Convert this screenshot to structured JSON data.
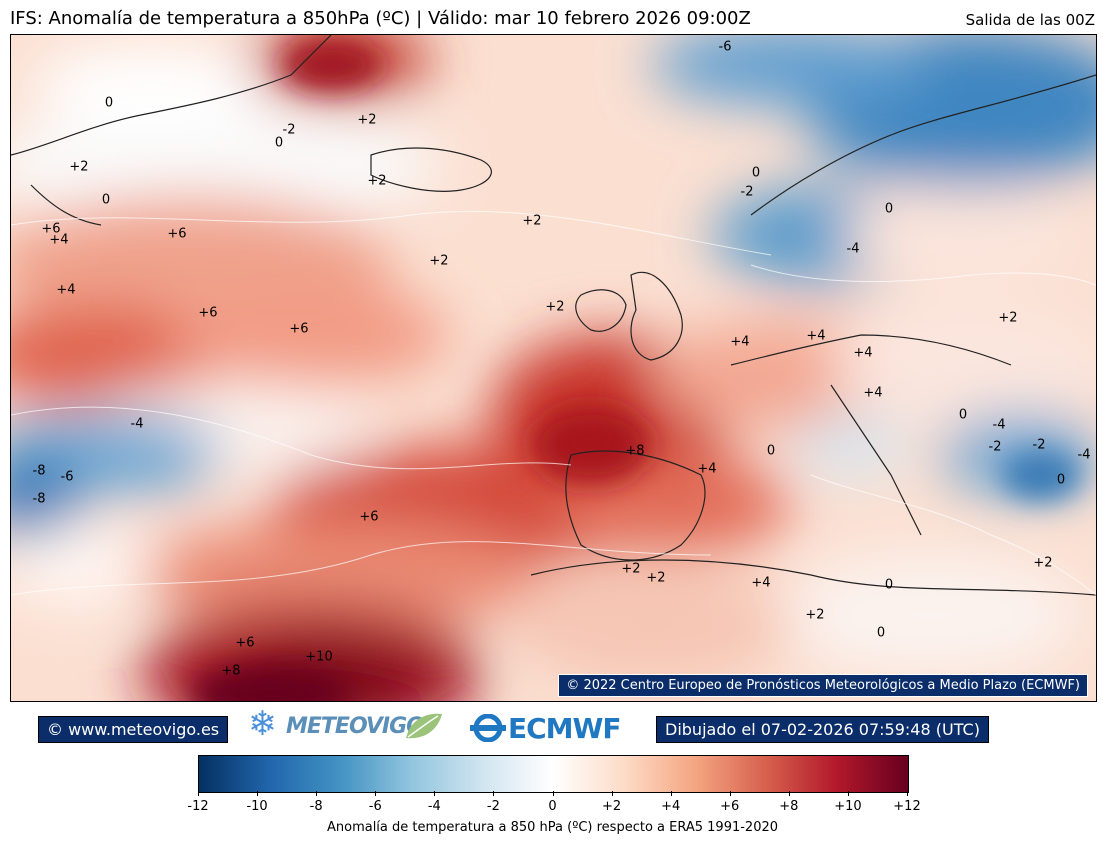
{
  "header": {
    "title": "IFS: Anomalía de temperatura a 850hPa  (ºC) | Válido: mar 10 febrero 2026 09:00Z",
    "run": "Salida de las 00Z"
  },
  "map": {
    "copyright": "© 2022 Centro Europeo de Pronósticos Meteorológicos a Medio Plazo (ECMWF)",
    "contour_labels": [
      {
        "id": "c1",
        "text": "0"
      },
      {
        "id": "c2",
        "text": "-2"
      },
      {
        "id": "c3",
        "text": "0"
      },
      {
        "id": "c4",
        "text": "+2"
      },
      {
        "id": "c5",
        "text": "-6"
      },
      {
        "id": "c6",
        "text": "+2"
      },
      {
        "id": "c7",
        "text": "+2"
      },
      {
        "id": "c8",
        "text": "0"
      },
      {
        "id": "c9",
        "text": "+6"
      },
      {
        "id": "c10",
        "text": "+4"
      },
      {
        "id": "c11",
        "text": "+6"
      },
      {
        "id": "c12",
        "text": "+2"
      },
      {
        "id": "c13",
        "text": "+2"
      },
      {
        "id": "c14",
        "text": "0"
      },
      {
        "id": "c15",
        "text": "-2"
      },
      {
        "id": "c16",
        "text": "0"
      },
      {
        "id": "c17",
        "text": "-4"
      },
      {
        "id": "c18",
        "text": "+4"
      },
      {
        "id": "c19",
        "text": "+6"
      },
      {
        "id": "c20",
        "text": "+6"
      },
      {
        "id": "c21",
        "text": "+2"
      },
      {
        "id": "c22",
        "text": "+4"
      },
      {
        "id": "c23",
        "text": "+4"
      },
      {
        "id": "c24",
        "text": "+4"
      },
      {
        "id": "c25",
        "text": "+4"
      },
      {
        "id": "c26",
        "text": "+2"
      },
      {
        "id": "c27",
        "text": "-4"
      },
      {
        "id": "c28",
        "text": "-8"
      },
      {
        "id": "c29",
        "text": "-6"
      },
      {
        "id": "c30",
        "text": "-8"
      },
      {
        "id": "c31",
        "text": "+8"
      },
      {
        "id": "c32",
        "text": "+4"
      },
      {
        "id": "c33",
        "text": "0"
      },
      {
        "id": "c34",
        "text": "0"
      },
      {
        "id": "c35",
        "text": "-4"
      },
      {
        "id": "c36",
        "text": "-2"
      },
      {
        "id": "c37",
        "text": "-2"
      },
      {
        "id": "c38",
        "text": "-4"
      },
      {
        "id": "c39",
        "text": "0"
      },
      {
        "id": "c40",
        "text": "+6"
      },
      {
        "id": "c41",
        "text": "+2"
      },
      {
        "id": "c42",
        "text": "+2"
      },
      {
        "id": "c43",
        "text": "+4"
      },
      {
        "id": "c44",
        "text": "+2"
      },
      {
        "id": "c45",
        "text": "0"
      },
      {
        "id": "c46",
        "text": "0"
      },
      {
        "id": "c47",
        "text": "+2"
      },
      {
        "id": "c48",
        "text": "+6"
      },
      {
        "id": "c49",
        "text": "+8"
      },
      {
        "id": "c50",
        "text": "+10"
      }
    ]
  },
  "footer": {
    "site": "© www.meteovigo.es",
    "meteovigo_logo": "METEOVIGO",
    "ecmwf_logo": "ECMWF",
    "drawn": "Dibujado el 07-02-2026 07:59:48 (UTC)"
  },
  "colorbar": {
    "label": "Anomalía de temperatura a 850 hPa (ºC) respecto a ERA5 1991-2020",
    "ticks": [
      "-12",
      "-10",
      "-8",
      "-6",
      "-4",
      "-2",
      "0",
      "+2",
      "+4",
      "+6",
      "+8",
      "+10",
      "+12"
    ],
    "colors": [
      "#053061",
      "#2166ac",
      "#4393c3",
      "#92c5de",
      "#d1e5f0",
      "#ffffff",
      "#fddbc7",
      "#f4a582",
      "#d6604d",
      "#b2182b",
      "#67001f"
    ]
  }
}
